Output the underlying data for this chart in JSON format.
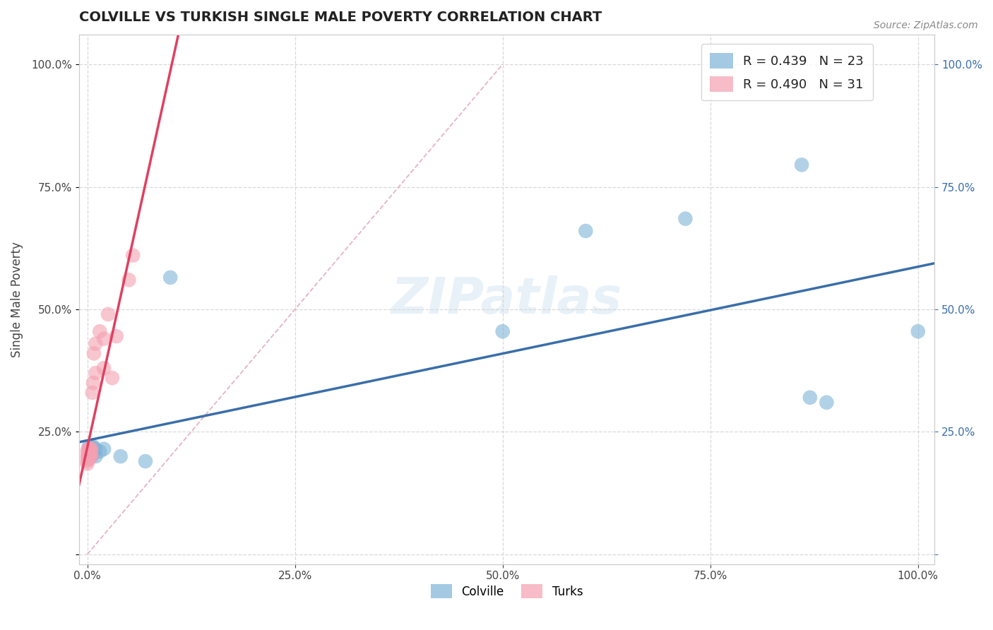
{
  "title": "COLVILLE VS TURKISH SINGLE MALE POVERTY CORRELATION CHART",
  "source": "Source: ZipAtlas.com",
  "xlabel_label": "Colville",
  "ylabel_label": "Turks",
  "ylabel": "Single Male Poverty",
  "r_colville": 0.439,
  "n_colville": 23,
  "r_turks": 0.49,
  "n_turks": 31,
  "colville_color": "#7eb3d8",
  "turks_color": "#f4a0b0",
  "colville_line_color": "#3a6eaa",
  "turks_line_color": "#e04060",
  "diag_line_color": "#e0a0b0",
  "background_color": "#ffffff",
  "colville_scatter": [
    [
      0.002,
      0.22
    ],
    [
      0.002,
      0.205
    ],
    [
      0.003,
      0.215
    ],
    [
      0.004,
      0.21
    ],
    [
      0.005,
      0.22
    ],
    [
      0.005,
      0.2
    ],
    [
      0.006,
      0.215
    ],
    [
      0.007,
      0.22
    ],
    [
      0.007,
      0.205
    ],
    [
      0.01,
      0.215
    ],
    [
      0.01,
      0.2
    ],
    [
      0.015,
      0.21
    ],
    [
      0.02,
      0.215
    ],
    [
      0.04,
      0.2
    ],
    [
      0.07,
      0.19
    ],
    [
      0.1,
      0.565
    ],
    [
      0.5,
      0.455
    ],
    [
      0.6,
      0.66
    ],
    [
      0.72,
      0.685
    ],
    [
      0.86,
      0.795
    ],
    [
      0.87,
      0.32
    ],
    [
      0.89,
      0.31
    ],
    [
      1.0,
      0.455
    ]
  ],
  "turks_scatter": [
    [
      0.0,
      0.21
    ],
    [
      0.0,
      0.2
    ],
    [
      0.0,
      0.19
    ],
    [
      0.0,
      0.185
    ],
    [
      0.001,
      0.215
    ],
    [
      0.001,
      0.2
    ],
    [
      0.001,
      0.195
    ],
    [
      0.002,
      0.21
    ],
    [
      0.002,
      0.205
    ],
    [
      0.002,
      0.195
    ],
    [
      0.003,
      0.215
    ],
    [
      0.003,
      0.205
    ],
    [
      0.003,
      0.215
    ],
    [
      0.003,
      0.2
    ],
    [
      0.004,
      0.21
    ],
    [
      0.004,
      0.205
    ],
    [
      0.005,
      0.215
    ],
    [
      0.005,
      0.2
    ],
    [
      0.006,
      0.33
    ],
    [
      0.007,
      0.35
    ],
    [
      0.008,
      0.41
    ],
    [
      0.01,
      0.37
    ],
    [
      0.01,
      0.43
    ],
    [
      0.015,
      0.455
    ],
    [
      0.02,
      0.44
    ],
    [
      0.02,
      0.38
    ],
    [
      0.025,
      0.49
    ],
    [
      0.03,
      0.36
    ],
    [
      0.035,
      0.445
    ],
    [
      0.05,
      0.56
    ],
    [
      0.055,
      0.61
    ]
  ],
  "xlim": [
    -0.01,
    1.02
  ],
  "ylim": [
    -0.02,
    1.06
  ],
  "xticks": [
    0.0,
    0.25,
    0.5,
    0.75,
    1.0
  ],
  "yticks": [
    0.0,
    0.25,
    0.5,
    0.75,
    1.0
  ],
  "grid_color": "#d8d8d8",
  "title_color": "#222222",
  "tick_color_right": "#3a6eaa",
  "axis_label_color": "#444444"
}
